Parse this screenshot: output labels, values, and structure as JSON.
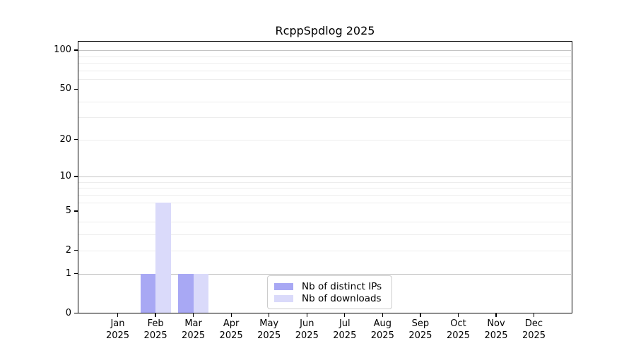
{
  "chart_data": {
    "type": "bar",
    "title": "RcppSpdlog 2025",
    "xlabel": "",
    "ylabel": "",
    "yscale": "log1p",
    "grid": "horizontal",
    "legend_position": "bottom-center",
    "y_ticks": [
      0,
      1,
      2,
      5,
      10,
      20,
      50,
      100
    ],
    "y_major_gridlines": [
      1,
      10,
      100
    ],
    "y_minor_gridlines": [
      2,
      3,
      4,
      6,
      7,
      8,
      9,
      20,
      30,
      40,
      60,
      70,
      80,
      90
    ],
    "ylim_top_value": 120,
    "categories": [
      {
        "month": "Jan",
        "year": "2025"
      },
      {
        "month": "Feb",
        "year": "2025"
      },
      {
        "month": "Mar",
        "year": "2025"
      },
      {
        "month": "Apr",
        "year": "2025"
      },
      {
        "month": "May",
        "year": "2025"
      },
      {
        "month": "Jun",
        "year": "2025"
      },
      {
        "month": "Jul",
        "year": "2025"
      },
      {
        "month": "Aug",
        "year": "2025"
      },
      {
        "month": "Sep",
        "year": "2025"
      },
      {
        "month": "Oct",
        "year": "2025"
      },
      {
        "month": "Nov",
        "year": "2025"
      },
      {
        "month": "Dec",
        "year": "2025"
      }
    ],
    "series": [
      {
        "name": "Nb of distinct IPs",
        "color": "#a8a8f4",
        "values": [
          0,
          1,
          1,
          0,
          0,
          0,
          0,
          0,
          0,
          0,
          0,
          0
        ]
      },
      {
        "name": "Nb of downloads",
        "color": "#dadafa",
        "values": [
          0,
          6,
          1,
          0,
          0,
          0,
          0,
          0,
          0,
          0,
          0,
          0
        ]
      }
    ]
  },
  "colors": {
    "background": "#ffffff",
    "spine": "#000000",
    "major_grid": "#c4c4c4",
    "minor_grid": "#ededed",
    "legend_border": "#cccccc",
    "text": "#000000"
  }
}
